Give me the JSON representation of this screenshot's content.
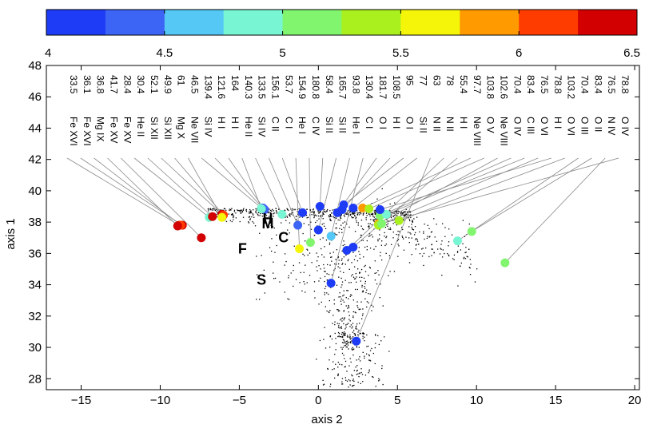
{
  "chart_data": {
    "type": "scatter",
    "xlabel": "axis 2",
    "ylabel": "axis 1",
    "xlim": [
      -17.2,
      20.3
    ],
    "ylim": [
      27.3,
      48.0
    ],
    "xticks": [
      -15,
      -10,
      -5,
      0,
      5,
      10,
      15,
      20
    ],
    "yticks": [
      28,
      30,
      32,
      34,
      36,
      38,
      40,
      42,
      44,
      46,
      48
    ],
    "colorbar": {
      "min": 4,
      "max": 6.5,
      "ticks": [
        "4",
        "4.5",
        "5",
        "5.5",
        "6",
        "6.5"
      ],
      "bins": [
        "#1e3cf5",
        "#3c64f5",
        "#55c8f5",
        "#78f5d2",
        "#82f56e",
        "#aaf01e",
        "#f5f50a",
        "#ff9b00",
        "#ff3c00",
        "#d20000"
      ]
    },
    "region_labels": [
      {
        "text": "H",
        "x": -3.2,
        "y": 37.9
      },
      {
        "text": "M",
        "x": -3.2,
        "y": 37.6
      },
      {
        "text": "C",
        "x": -2.2,
        "y": 36.7
      },
      {
        "text": "F",
        "x": -4.8,
        "y": 36.0
      },
      {
        "text": "S",
        "x": -3.6,
        "y": 34.0
      }
    ],
    "lines": [
      {
        "ion": "Fe XVI",
        "wavelength": "33.5",
        "x": -8.8,
        "y": 37.8,
        "value": 6.45
      },
      {
        "ion": "Fe XVI",
        "wavelength": "36.1",
        "x": -8.6,
        "y": 37.8,
        "value": 6.45
      },
      {
        "ion": "Mg IX",
        "wavelength": "36.8",
        "x": -8.7,
        "y": 37.8,
        "value": 6.0
      },
      {
        "ion": "Fe XV",
        "wavelength": "41.7",
        "x": -8.9,
        "y": 37.75,
        "value": 6.35
      },
      {
        "ion": "Fe XV",
        "wavelength": "28.4",
        "x": -7.4,
        "y": 37.0,
        "value": 6.3
      },
      {
        "ion": "He II",
        "wavelength": "30.4",
        "x": -6.9,
        "y": 38.3,
        "value": 4.9
      },
      {
        "ion": "Si XII",
        "wavelength": "52.1",
        "x": -6.7,
        "y": 38.35,
        "value": 6.3
      },
      {
        "ion": "Si XII",
        "wavelength": "49.9",
        "x": -6.1,
        "y": 38.5,
        "value": 6.3
      },
      {
        "ion": "Mg X",
        "wavelength": "61",
        "x": -6.0,
        "y": 38.45,
        "value": 6.1
      },
      {
        "ion": "Ne VII",
        "wavelength": "46.5",
        "x": -6.1,
        "y": 38.3,
        "value": 5.7
      },
      {
        "ion": "Si IV",
        "wavelength": "139.4",
        "x": -3.6,
        "y": 38.9,
        "value": 4.8
      },
      {
        "ion": "H I",
        "wavelength": "121.6",
        "x": -3.5,
        "y": 38.9,
        "value": 4.3
      },
      {
        "ion": "H I",
        "wavelength": "164",
        "x": -3.4,
        "y": 38.8,
        "value": 4.3
      },
      {
        "ion": "He II",
        "wavelength": "140.3",
        "x": -3.6,
        "y": 38.85,
        "value": 4.9
      },
      {
        "ion": "Si IV",
        "wavelength": "133.5",
        "x": -2.3,
        "y": 38.5,
        "value": 4.8
      },
      {
        "ion": "C II",
        "wavelength": "156.1",
        "x": -1.3,
        "y": 37.8,
        "value": 4.4
      },
      {
        "ion": "C I",
        "wavelength": "53.7",
        "x": -1.0,
        "y": 38.6,
        "value": 4.2
      },
      {
        "ion": "He I",
        "wavelength": "154.9",
        "x": -1.2,
        "y": 36.3,
        "value": 5.5
      },
      {
        "ion": "C IV",
        "wavelength": "180.8",
        "x": -0.5,
        "y": 36.7,
        "value": 5.0
      },
      {
        "ion": "Si II",
        "wavelength": "58.4",
        "x": 0.1,
        "y": 39.0,
        "value": 4.1
      },
      {
        "ion": "Si II",
        "wavelength": "165.7",
        "x": 0.0,
        "y": 37.5,
        "value": 4.1
      },
      {
        "ion": "He I",
        "wavelength": "93.8",
        "x": 0.8,
        "y": 37.1,
        "value": 4.6
      },
      {
        "ion": "C I",
        "wavelength": "130.4",
        "x": 0.8,
        "y": 34.1,
        "value": 4.2
      },
      {
        "ion": "O I",
        "wavelength": "181.7",
        "x": 1.2,
        "y": 38.6,
        "value": 4.2
      },
      {
        "ion": "H I",
        "wavelength": "108.5",
        "x": 1.5,
        "y": 38.8,
        "value": 4.0
      },
      {
        "ion": "O I",
        "wavelength": "95",
        "x": 1.6,
        "y": 39.1,
        "value": 4.1
      },
      {
        "ion": "Si II",
        "wavelength": "77",
        "x": 2.2,
        "y": 38.9,
        "value": 4.2
      },
      {
        "ion": "N II",
        "wavelength": "63",
        "x": 2.4,
        "y": 30.4,
        "value": 4.1
      },
      {
        "ion": "N II",
        "wavelength": "78",
        "x": 1.8,
        "y": 36.2,
        "value": 4.1
      },
      {
        "ion": "H I",
        "wavelength": "55.4",
        "x": 2.2,
        "y": 36.4,
        "value": 4.1
      },
      {
        "ion": "Ne VIII",
        "wavelength": "97.7",
        "x": 2.8,
        "y": 38.9,
        "value": 5.9
      },
      {
        "ion": "O V",
        "wavelength": "103.8",
        "x": 3.2,
        "y": 38.85,
        "value": 5.4
      },
      {
        "ion": "Ne VIII",
        "wavelength": "102.6",
        "x": 3.8,
        "y": 37.9,
        "value": 5.8
      },
      {
        "ion": "O IV",
        "wavelength": "70.4",
        "x": 3.9,
        "y": 38.4,
        "value": 5.2
      },
      {
        "ion": "C III",
        "wavelength": "83.4",
        "x": 4.3,
        "y": 38.5,
        "value": 4.9
      },
      {
        "ion": "O VI",
        "wavelength": "76.5",
        "x": 3.8,
        "y": 37.8,
        "value": 5.4
      },
      {
        "ion": "H I",
        "wavelength": "78.8",
        "x": 3.9,
        "y": 38.8,
        "value": 4.2
      },
      {
        "ion": "O VI",
        "wavelength": "103.2",
        "x": 5.1,
        "y": 38.1,
        "value": 5.4
      },
      {
        "ion": "O III",
        "wavelength": "70.4",
        "x": 8.8,
        "y": 36.8,
        "value": 4.9
      },
      {
        "ion": "O II",
        "wavelength": "83.4",
        "x": 9.7,
        "y": 37.4,
        "value": 5.0
      },
      {
        "ion": "N IV",
        "wavelength": "76.5",
        "x": 11.8,
        "y": 35.4,
        "value": 5.1
      },
      {
        "ion": "O IV",
        "wavelength": "78.8",
        "x": 4.0,
        "y": 37.9,
        "value": 5.2
      }
    ]
  }
}
